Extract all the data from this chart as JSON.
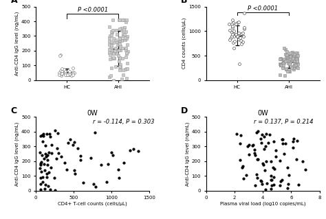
{
  "panel_A": {
    "label": "A",
    "HC_mean": 55,
    "HC_sd": 25,
    "AHI_mean": 215,
    "AHI_sd": 120,
    "ylabel": "Anti-CD4 IgG level (ng/mL)",
    "ylim": [
      0,
      500
    ],
    "yticks": [
      0,
      100,
      200,
      300,
      400,
      500
    ],
    "pvalue": "P <0.0001",
    "xticks": [
      "HC",
      "AHI"
    ],
    "hc_n": 30,
    "ahi_n": 100
  },
  "panel_B": {
    "label": "B",
    "HC_mean": 910,
    "HC_sd": 200,
    "AHI_mean": 380,
    "AHI_sd": 130,
    "ylabel": "CD4 counts (cells/μL)",
    "ylim": [
      0,
      1500
    ],
    "yticks": [
      0,
      500,
      1000,
      1500
    ],
    "pvalue": "P <0.0001",
    "xticks": [
      "HC",
      "AHI"
    ],
    "hc_n": 40,
    "ahi_n": 80
  },
  "panel_C": {
    "label": "C",
    "title": "0W",
    "annotation": "r = -0.114, P = 0.303",
    "xlabel": "CD4+ T-cell counts (cells/μL)",
    "ylabel": "Anti-CD4 IgG level (ng/mL)",
    "xlim": [
      0,
      1500
    ],
    "ylim": [
      0,
      500
    ],
    "xticks": [
      0,
      500,
      1000,
      1500
    ],
    "yticks": [
      0,
      100,
      200,
      300,
      400,
      500
    ]
  },
  "panel_D": {
    "label": "D",
    "title": "0W",
    "annotation": "r = 0.137, P = 0.214",
    "xlabel": "Plasma viral load (log10 copies/mL)",
    "ylabel": "Anti-CD4 IgG level (ng/mL)",
    "xlim": [
      0,
      8
    ],
    "ylim": [
      0,
      500
    ],
    "xticks": [
      0,
      2,
      4,
      6,
      8
    ],
    "yticks": [
      0,
      100,
      200,
      300,
      400,
      500
    ]
  },
  "font_size": 6,
  "title_font_size": 7,
  "label_font_size": 9
}
